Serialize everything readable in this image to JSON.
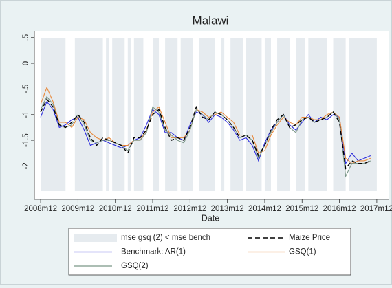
{
  "chart_data": {
    "type": "line",
    "title": "Malawi",
    "x_label": "Date",
    "x": [
      "2008m12",
      "2009m2",
      "2009m4",
      "2009m6",
      "2009m8",
      "2009m10",
      "2009m12",
      "2010m2",
      "2010m4",
      "2010m6",
      "2010m8",
      "2010m10",
      "2010m12",
      "2011m2",
      "2011m4",
      "2011m6",
      "2011m8",
      "2011m10",
      "2011m12",
      "2012m2",
      "2012m4",
      "2012m6",
      "2012m8",
      "2012m10",
      "2012m12",
      "2013m2",
      "2013m4",
      "2013m6",
      "2013m8",
      "2013m10",
      "2013m12",
      "2014m2",
      "2014m4",
      "2014m6",
      "2014m8",
      "2014m10",
      "2014m12",
      "2015m2",
      "2015m4",
      "2015m6",
      "2015m8",
      "2015m10",
      "2015m12",
      "2016m2",
      "2016m4",
      "2016m6",
      "2016m8",
      "2016m10",
      "2016m12",
      "2017m2",
      "2017m4",
      "2017m6",
      "2017m8",
      "2017m10"
    ],
    "series": [
      {
        "name": "Maize Price",
        "color": "#000000",
        "dashed": true,
        "values": [
          -0.95,
          -0.7,
          -0.85,
          -1.2,
          -1.25,
          -1.15,
          -1.0,
          -1.15,
          -1.45,
          -1.6,
          -1.45,
          -1.5,
          -1.55,
          -1.6,
          -1.75,
          -1.45,
          -1.45,
          -1.3,
          -1.0,
          -0.9,
          -1.25,
          -1.5,
          -1.45,
          -1.5,
          -1.25,
          -0.85,
          -1.05,
          -1.1,
          -0.95,
          -1.0,
          -1.1,
          -1.25,
          -1.45,
          -1.4,
          -1.5,
          -1.8,
          -1.6,
          -1.3,
          -1.1,
          -1.0,
          -1.25,
          -1.2,
          -1.1,
          -1.05,
          -1.15,
          -1.1,
          -1.05,
          -0.95,
          -1.15,
          -2.05,
          -1.9,
          -1.95,
          -1.95,
          -1.9
        ]
      },
      {
        "name": "Benchmark: AR(1)",
        "color": "#2d2ddc",
        "dashed": false,
        "values": [
          -1.05,
          -0.75,
          -0.9,
          -1.25,
          -1.2,
          -1.1,
          -1.05,
          -1.3,
          -1.6,
          -1.55,
          -1.5,
          -1.55,
          -1.6,
          -1.65,
          -1.6,
          -1.5,
          -1.45,
          -1.2,
          -0.9,
          -1.0,
          -1.35,
          -1.35,
          -1.45,
          -1.5,
          -1.2,
          -0.95,
          -1.0,
          -1.15,
          -1.0,
          -1.05,
          -1.15,
          -1.3,
          -1.5,
          -1.45,
          -1.6,
          -1.9,
          -1.55,
          -1.3,
          -1.15,
          -1.0,
          -1.2,
          -1.3,
          -1.15,
          -1.0,
          -1.15,
          -1.05,
          -1.1,
          -1.0,
          -1.05,
          -1.95,
          -1.75,
          -1.9,
          -1.85,
          -1.8
        ]
      },
      {
        "name": "GSQ(1)",
        "color": "#e8883a",
        "dashed": false,
        "values": [
          -0.8,
          -0.47,
          -0.75,
          -1.15,
          -1.15,
          -1.25,
          -1.05,
          -1.1,
          -1.35,
          -1.45,
          -1.5,
          -1.45,
          -1.55,
          -1.6,
          -1.6,
          -1.5,
          -1.5,
          -1.3,
          -0.95,
          -0.85,
          -1.15,
          -1.45,
          -1.45,
          -1.45,
          -1.3,
          -0.9,
          -0.95,
          -1.05,
          -1.0,
          -0.95,
          -1.05,
          -1.15,
          -1.4,
          -1.4,
          -1.4,
          -1.75,
          -1.7,
          -1.4,
          -1.2,
          -1.05,
          -1.15,
          -1.2,
          -1.05,
          -1.05,
          -1.1,
          -1.1,
          -1.0,
          -0.95,
          -1.05,
          -1.85,
          -1.95,
          -1.9,
          -1.9,
          -1.85
        ]
      },
      {
        "name": "GSQ(2)",
        "color": "#7a9688",
        "dashed": false,
        "values": [
          -0.9,
          -0.65,
          -0.8,
          -1.2,
          -1.25,
          -1.2,
          -1.0,
          -1.2,
          -1.5,
          -1.55,
          -1.5,
          -1.5,
          -1.55,
          -1.6,
          -1.7,
          -1.5,
          -1.5,
          -1.35,
          -0.85,
          -0.95,
          -1.3,
          -1.4,
          -1.5,
          -1.55,
          -1.3,
          -0.9,
          -1.0,
          -1.1,
          -0.95,
          -1.0,
          -1.1,
          -1.25,
          -1.45,
          -1.4,
          -1.5,
          -1.85,
          -1.6,
          -1.35,
          -1.15,
          -1.0,
          -1.25,
          -1.35,
          -1.1,
          -1.05,
          -1.15,
          -1.1,
          -1.05,
          -0.95,
          -1.1,
          -2.2,
          -1.95,
          -1.95,
          -1.95,
          -1.9
        ]
      }
    ],
    "shaded": {
      "name": "mse gsq (2) < mse bench",
      "color": "#e6ebef",
      "intervals": [
        [
          "2008m12",
          "2009m8"
        ],
        [
          "2009m11",
          "2010m8"
        ],
        [
          "2010m9",
          "2010m10"
        ],
        [
          "2010m11",
          "2011m3"
        ],
        [
          "2011m4",
          "2011m5"
        ],
        [
          "2011m6",
          "2011m9"
        ],
        [
          "2011m12",
          "2012m2"
        ],
        [
          "2012m4",
          "2012m8"
        ],
        [
          "2012m9",
          "2013m1"
        ],
        [
          "2013m3",
          "2013m8"
        ],
        [
          "2013m10",
          "2013m11"
        ],
        [
          "2014m1",
          "2014m5"
        ],
        [
          "2014m6",
          "2014m11"
        ],
        [
          "2014m12",
          "2015m2"
        ],
        [
          "2015m4",
          "2015m8"
        ],
        [
          "2015m10",
          "2016m1"
        ],
        [
          "2016m2",
          "2016m8"
        ],
        [
          "2016m10",
          "2017m2"
        ],
        [
          "2017m3",
          "2017m12"
        ]
      ]
    },
    "xlim": [
      "2008m10",
      "2018m4"
    ],
    "xticks": [
      "2008m12",
      "2009m12",
      "2010m12",
      "2011m12",
      "2012m12",
      "2013m12",
      "2014m12",
      "2015m12",
      "2016m12",
      "2017m12"
    ],
    "ylim": [
      -2.65,
      0.63
    ],
    "yticks": [
      {
        "value": 0.5,
        "label": ".5"
      },
      0,
      {
        "value": -0.5,
        "label": "-.5"
      },
      -1,
      -1.5,
      -2
    ]
  }
}
